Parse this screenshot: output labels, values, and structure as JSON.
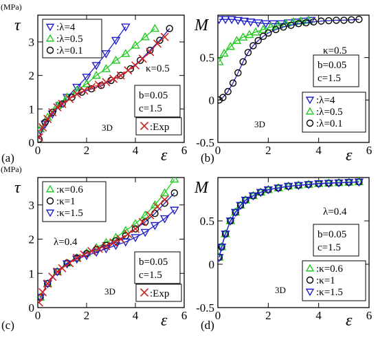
{
  "chart_data": [
    {
      "panel": "(a)",
      "type": "scatter",
      "ylabel": "τ",
      "yunit": "(MPa)",
      "xlabel": "ε",
      "xlim": [
        0,
        6
      ],
      "ylim": [
        0,
        3.8
      ],
      "xticks": [
        "0",
        "2",
        "4",
        "6"
      ],
      "yticks": [
        "0",
        "1",
        "2",
        "3"
      ],
      "kappa": "κ=0.5",
      "params": [
        "b=0.05",
        "c=1.5"
      ],
      "dim": "3D",
      "series": [
        {
          "name": ":λ=4",
          "marker": "tri-down",
          "color": "#2020c8",
          "x": [
            0.1,
            0.3,
            0.6,
            0.9,
            1.2,
            1.6,
            2.0,
            2.4,
            2.8,
            3.2,
            3.6
          ],
          "y": [
            0.35,
            0.55,
            0.85,
            1.1,
            1.35,
            1.65,
            1.95,
            2.3,
            2.65,
            3.05,
            3.45
          ]
        },
        {
          "name": ":λ=0.5",
          "marker": "tri-up",
          "color": "#22cc22",
          "x": [
            0.1,
            0.4,
            0.8,
            1.2,
            1.6,
            2.0,
            2.4,
            2.8,
            3.2,
            3.6,
            4.0,
            4.4,
            4.8
          ],
          "y": [
            0.4,
            0.75,
            1.1,
            1.35,
            1.55,
            1.75,
            2.0,
            2.2,
            2.45,
            2.65,
            2.9,
            3.15,
            3.4
          ]
        },
        {
          "name": ":λ=0.1",
          "marker": "circle",
          "color": "#000000",
          "x": [
            0.05,
            0.3,
            0.6,
            1.0,
            1.4,
            1.8,
            2.2,
            2.6,
            3.0,
            3.4,
            3.8,
            4.2,
            4.6,
            5.0,
            5.4
          ],
          "y": [
            0.1,
            0.6,
            0.9,
            1.15,
            1.35,
            1.5,
            1.6,
            1.7,
            1.85,
            2.0,
            2.2,
            2.45,
            2.75,
            3.05,
            3.4
          ]
        },
        {
          "name": ":Exp",
          "marker": "x",
          "color": "#cc2222",
          "x": [
            0.05,
            0.2,
            0.4,
            0.6,
            0.8,
            1.0,
            1.3,
            1.6,
            1.9,
            2.2,
            2.5,
            2.8,
            3.1,
            3.4,
            3.7,
            4.0,
            4.3,
            4.6,
            4.9,
            5.2
          ],
          "y": [
            0.15,
            0.45,
            0.7,
            0.9,
            1.05,
            1.15,
            1.3,
            1.45,
            1.55,
            1.65,
            1.72,
            1.8,
            1.9,
            2.0,
            2.15,
            2.3,
            2.5,
            2.7,
            2.95,
            3.15
          ]
        }
      ]
    },
    {
      "panel": "(b)",
      "type": "scatter",
      "ylabel": "M",
      "xlabel": "ε",
      "xlim": [
        0,
        6
      ],
      "ylim": [
        -0.5,
        1.0
      ],
      "xticks": [
        "0",
        "2",
        "4",
        "6"
      ],
      "yticks": [
        "-0.5",
        "0",
        "0.5"
      ],
      "kappa": "κ=0.5",
      "params": [
        "b=0.05",
        "c=1.5"
      ],
      "dim": "3D",
      "series": [
        {
          "name": ":λ=4",
          "marker": "tri-down",
          "color": "#2020c8",
          "x": [
            0.05,
            0.3,
            0.55,
            0.8,
            1.05,
            1.3,
            1.6,
            1.9,
            2.2,
            2.5,
            2.8,
            3.1,
            3.4,
            3.7
          ],
          "y": [
            0.95,
            0.95,
            0.95,
            0.94,
            0.93,
            0.92,
            0.91,
            0.9,
            0.9,
            0.9,
            0.91,
            0.92,
            0.93,
            0.94
          ]
        },
        {
          "name": ":λ=0.5",
          "marker": "tri-up",
          "color": "#22cc22",
          "x": [
            0.05,
            0.25,
            0.5,
            0.75,
            1.0,
            1.25,
            1.5,
            1.8,
            2.1,
            2.4,
            2.7,
            3.0,
            3.3,
            3.6
          ],
          "y": [
            0.45,
            0.55,
            0.63,
            0.7,
            0.74,
            0.77,
            0.8,
            0.83,
            0.86,
            0.88,
            0.9,
            0.92,
            0.93,
            0.94
          ]
        },
        {
          "name": ":λ=0.1",
          "marker": "circle",
          "color": "#000000",
          "x": [
            0.05,
            0.2,
            0.4,
            0.6,
            0.8,
            1.0,
            1.2,
            1.4,
            1.6,
            1.8,
            2.0,
            2.3,
            2.6,
            2.9,
            3.2,
            3.5,
            3.8,
            4.1,
            4.4,
            4.7,
            5.0,
            5.3,
            5.6
          ],
          "y": [
            0.0,
            0.03,
            0.1,
            0.2,
            0.32,
            0.45,
            0.56,
            0.64,
            0.7,
            0.75,
            0.79,
            0.83,
            0.86,
            0.88,
            0.9,
            0.91,
            0.92,
            0.93,
            0.935,
            0.94,
            0.94,
            0.945,
            0.95
          ]
        }
      ]
    },
    {
      "panel": "(c)",
      "type": "scatter",
      "ylabel": "τ",
      "yunit": "(MPa)",
      "xlabel": "ε",
      "xlim": [
        0,
        6
      ],
      "ylim": [
        0,
        3.8
      ],
      "xticks": [
        "0",
        "2",
        "4",
        "6"
      ],
      "yticks": [
        "0",
        "1",
        "2",
        "3"
      ],
      "lambda": "λ=0.4",
      "params": [
        "b=0.05",
        "c=1.5"
      ],
      "dim": "3D",
      "series": [
        {
          "name": ":κ=0.6",
          "marker": "tri-up",
          "color": "#22cc22",
          "x": [
            0.1,
            0.4,
            0.8,
            1.2,
            1.6,
            2.0,
            2.4,
            2.8,
            3.2,
            3.6,
            4.0,
            4.4,
            4.8,
            5.2,
            5.6
          ],
          "y": [
            0.3,
            0.7,
            1.05,
            1.3,
            1.45,
            1.6,
            1.75,
            1.9,
            2.05,
            2.25,
            2.45,
            2.7,
            3.0,
            3.35,
            3.75
          ]
        },
        {
          "name": ":κ=1",
          "marker": "circle",
          "color": "#000000",
          "x": [
            0.1,
            0.4,
            0.8,
            1.2,
            1.6,
            2.0,
            2.4,
            2.8,
            3.2,
            3.6,
            4.0,
            4.4,
            4.8,
            5.2,
            5.6
          ],
          "y": [
            0.3,
            0.7,
            1.05,
            1.3,
            1.45,
            1.58,
            1.7,
            1.82,
            1.95,
            2.1,
            2.3,
            2.5,
            2.75,
            3.05,
            3.35
          ]
        },
        {
          "name": ":κ=1.5",
          "marker": "tri-down",
          "color": "#2020c8",
          "x": [
            0.1,
            0.4,
            0.8,
            1.2,
            1.6,
            2.0,
            2.4,
            2.8,
            3.2,
            3.6,
            4.0,
            4.4,
            4.8,
            5.2,
            5.6
          ],
          "y": [
            0.3,
            0.7,
            1.05,
            1.28,
            1.42,
            1.52,
            1.62,
            1.72,
            1.82,
            1.92,
            2.05,
            2.2,
            2.4,
            2.6,
            2.85
          ]
        },
        {
          "name": ":Exp",
          "marker": "x",
          "color": "#cc2222",
          "x": [
            0.05,
            0.2,
            0.4,
            0.6,
            0.8,
            1.0,
            1.3,
            1.6,
            1.9,
            2.2,
            2.5,
            2.8,
            3.1,
            3.4,
            3.7,
            4.0,
            4.3,
            4.6,
            4.9,
            5.2
          ],
          "y": [
            0.15,
            0.45,
            0.7,
            0.9,
            1.05,
            1.15,
            1.3,
            1.45,
            1.55,
            1.65,
            1.72,
            1.8,
            1.9,
            2.0,
            2.15,
            2.3,
            2.5,
            2.7,
            2.95,
            3.15
          ]
        }
      ]
    },
    {
      "panel": "(d)",
      "type": "scatter",
      "ylabel": "M",
      "xlabel": "ε",
      "xlim": [
        0,
        6
      ],
      "ylim": [
        -0.5,
        1.0
      ],
      "xticks": [
        "0",
        "2",
        "4",
        "6"
      ],
      "yticks": [
        "-0.5",
        "0",
        "0.5"
      ],
      "lambda": "λ=0.4",
      "params": [
        "b=0.05",
        "c=1.5"
      ],
      "dim": "3D",
      "series": [
        {
          "name": ":κ=0.6",
          "marker": "tri-up",
          "color": "#22cc22",
          "x": [
            0.05,
            0.15,
            0.3,
            0.5,
            0.7,
            0.9,
            1.1,
            1.4,
            1.7,
            2.0,
            2.4,
            2.8,
            3.2,
            3.6,
            4.0,
            4.4,
            4.8,
            5.2,
            5.6
          ],
          "y": [
            0.08,
            0.2,
            0.35,
            0.5,
            0.6,
            0.68,
            0.74,
            0.79,
            0.83,
            0.86,
            0.88,
            0.9,
            0.91,
            0.92,
            0.93,
            0.935,
            0.94,
            0.945,
            0.95
          ]
        },
        {
          "name": ":κ=1",
          "marker": "circle",
          "color": "#000000",
          "x": [
            0.05,
            0.15,
            0.3,
            0.5,
            0.7,
            0.9,
            1.1,
            1.4,
            1.7,
            2.0,
            2.4,
            2.8,
            3.2,
            3.6,
            4.0,
            4.4,
            4.8,
            5.2,
            5.6
          ],
          "y": [
            0.08,
            0.2,
            0.35,
            0.5,
            0.6,
            0.68,
            0.74,
            0.79,
            0.83,
            0.86,
            0.88,
            0.9,
            0.91,
            0.92,
            0.93,
            0.935,
            0.94,
            0.945,
            0.95
          ]
        },
        {
          "name": ":κ=1.5",
          "marker": "tri-down",
          "color": "#2020c8",
          "x": [
            0.05,
            0.15,
            0.3,
            0.5,
            0.7,
            0.9,
            1.1,
            1.4,
            1.7,
            2.0,
            2.4,
            2.8,
            3.2,
            3.6,
            4.0,
            4.4,
            4.8,
            5.2,
            5.6
          ],
          "y": [
            0.08,
            0.2,
            0.35,
            0.5,
            0.6,
            0.68,
            0.74,
            0.79,
            0.83,
            0.86,
            0.88,
            0.9,
            0.91,
            0.92,
            0.93,
            0.935,
            0.94,
            0.945,
            0.95
          ]
        }
      ]
    }
  ]
}
